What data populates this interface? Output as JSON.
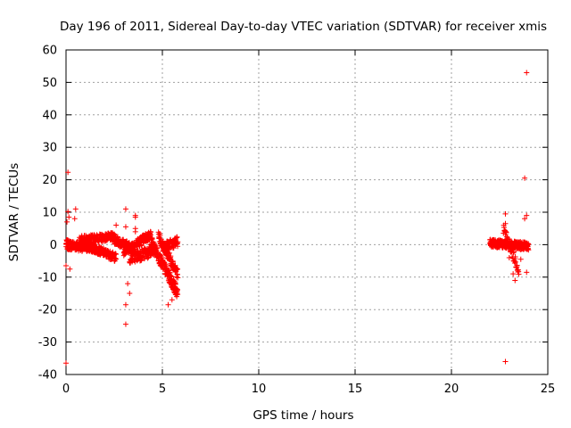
{
  "chart_data": {
    "type": "scatter",
    "title": "Day 196 of 2011, Sidereal Day-to-day VTEC variation (SDTVAR) for receiver xmis",
    "xlabel": "GPS time / hours",
    "ylabel": "SDTVAR / TECUs",
    "xlim": [
      0,
      25
    ],
    "ylim": [
      -40,
      60
    ],
    "xticks": [
      0,
      5,
      10,
      15,
      20,
      25
    ],
    "yticks": [
      -40,
      -30,
      -20,
      -10,
      0,
      10,
      20,
      30,
      40,
      50,
      60
    ],
    "grid": true,
    "marker": "+",
    "color": "#ff0000",
    "series": [
      {
        "name": "xmis",
        "dense_segments": [
          {
            "x_start": 0.0,
            "x_end": 1.5,
            "y_center_start": 0.0,
            "y_center_end": -1.0,
            "spread": 1.5,
            "step": 0.008
          },
          {
            "x_start": 0.7,
            "x_end": 2.5,
            "y_center_start": 1.5,
            "y_center_end": 2.5,
            "spread": 1.2,
            "step": 0.01
          },
          {
            "x_start": 1.2,
            "x_end": 2.6,
            "y_center_start": -0.5,
            "y_center_end": -4.0,
            "spread": 1.3,
            "step": 0.01
          },
          {
            "x_start": 2.4,
            "x_end": 3.4,
            "y_center_start": 2.0,
            "y_center_end": -1.0,
            "spread": 1.5,
            "step": 0.01
          },
          {
            "x_start": 3.0,
            "x_end": 4.4,
            "y_center_start": -2.0,
            "y_center_end": 3.0,
            "spread": 1.5,
            "step": 0.01
          },
          {
            "x_start": 3.3,
            "x_end": 4.6,
            "y_center_start": -4.0,
            "y_center_end": -2.0,
            "spread": 1.8,
            "step": 0.01
          },
          {
            "x_start": 4.4,
            "x_end": 5.8,
            "y_center_start": 1.0,
            "y_center_end": -15.0,
            "spread": 1.8,
            "step": 0.008
          },
          {
            "x_start": 4.8,
            "x_end": 5.8,
            "y_center_start": 2.5,
            "y_center_end": -9.0,
            "spread": 1.6,
            "step": 0.01
          },
          {
            "x_start": 5.0,
            "x_end": 5.8,
            "y_center_start": -1.0,
            "y_center_end": 1.0,
            "spread": 1.5,
            "step": 0.01
          },
          {
            "x_start": 22.0,
            "x_end": 24.0,
            "y_center_start": 0.5,
            "y_center_end": -0.5,
            "spread": 1.2,
            "step": 0.006
          },
          {
            "x_start": 22.7,
            "x_end": 23.5,
            "y_center_start": 5.0,
            "y_center_end": -8.0,
            "spread": 1.5,
            "step": 0.015
          }
        ],
        "points": [
          [
            0.1,
            22.3
          ],
          [
            0.0,
            -36.5
          ],
          [
            0.5,
            11.0
          ],
          [
            0.15,
            8.5
          ],
          [
            0.1,
            10.2
          ],
          [
            0.05,
            7.0
          ],
          [
            0.45,
            8.0
          ],
          [
            0.0,
            -6.5
          ],
          [
            0.2,
            -7.5
          ],
          [
            3.1,
            11.0
          ],
          [
            3.2,
            -12.0
          ],
          [
            3.3,
            -15.0
          ],
          [
            3.1,
            -18.5
          ],
          [
            3.1,
            -24.5
          ],
          [
            2.6,
            6.0
          ],
          [
            3.1,
            5.5
          ],
          [
            3.6,
            8.5
          ],
          [
            3.6,
            9.0
          ],
          [
            3.6,
            5.0
          ],
          [
            3.6,
            4.0
          ],
          [
            5.3,
            -18.5
          ],
          [
            5.5,
            -17.0
          ],
          [
            23.9,
            53.0
          ],
          [
            23.8,
            20.5
          ],
          [
            23.9,
            9.0
          ],
          [
            23.8,
            8.0
          ],
          [
            22.8,
            9.5
          ],
          [
            22.8,
            6.5
          ],
          [
            22.8,
            4.0
          ],
          [
            22.8,
            -36.0
          ],
          [
            23.3,
            -11.0
          ],
          [
            23.2,
            -9.0
          ],
          [
            23.4,
            -6.5
          ],
          [
            23.6,
            -4.5
          ],
          [
            23.0,
            -4.0
          ],
          [
            23.9,
            -8.5
          ]
        ]
      }
    ]
  }
}
